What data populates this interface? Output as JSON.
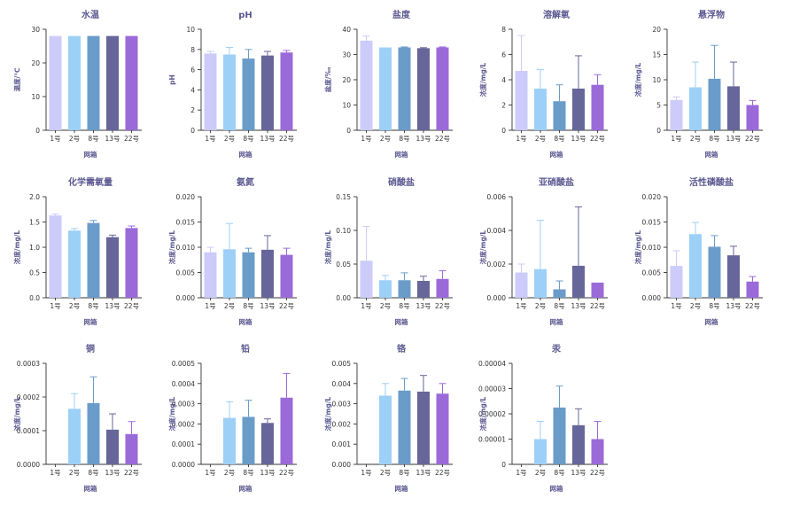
{
  "colors": [
    "#cccbfa",
    "#9dd0f7",
    "#6a9cc9",
    "#66669a",
    "#9b6ad9"
  ],
  "chart_data": [
    {
      "type": "bar",
      "title": "水温",
      "ylabel": "温度/℃",
      "xlabel": "网箱",
      "categories": [
        "1号",
        "2号",
        "8号",
        "13号",
        "22号"
      ],
      "ylim": [
        0,
        30
      ],
      "yticks": [
        "0",
        "10",
        "20",
        "30"
      ],
      "values": [
        28,
        28,
        28,
        28,
        28
      ],
      "errors": [
        0,
        0,
        0,
        0,
        0
      ]
    },
    {
      "type": "bar",
      "title": "pH",
      "ylabel": "pH",
      "xlabel": "网箱",
      "categories": [
        "1号",
        "2号",
        "8号",
        "13号",
        "22号"
      ],
      "ylim": [
        0,
        10
      ],
      "yticks": [
        "0",
        "2",
        "4",
        "6",
        "8",
        "10"
      ],
      "values": [
        7.6,
        7.5,
        7.1,
        7.4,
        7.7
      ],
      "errors": [
        0.2,
        0.7,
        0.9,
        0.4,
        0.2
      ]
    },
    {
      "type": "bar",
      "title": "盐度",
      "ylabel": "盐度/‰",
      "xlabel": "网箱",
      "categories": [
        "1号",
        "2号",
        "8号",
        "13号",
        "22号"
      ],
      "ylim": [
        0,
        40
      ],
      "yticks": [
        "0",
        "10",
        "20",
        "30",
        "40"
      ],
      "values": [
        35.5,
        32.8,
        32.8,
        32.5,
        32.8
      ],
      "errors": [
        1.8,
        0,
        0.2,
        0.2,
        0.2
      ]
    },
    {
      "type": "bar",
      "title": "溶解氧",
      "ylabel": "浓度/mg/L",
      "xlabel": "网箱",
      "categories": [
        "1号",
        "2号",
        "8号",
        "13号",
        "22号"
      ],
      "ylim": [
        0,
        8
      ],
      "yticks": [
        "0",
        "2",
        "4",
        "6",
        "8"
      ],
      "values": [
        4.7,
        3.3,
        2.3,
        3.3,
        3.6
      ],
      "errors": [
        2.8,
        1.5,
        1.3,
        2.6,
        0.8
      ]
    },
    {
      "type": "bar",
      "title": "悬浮物",
      "ylabel": "浓度/mg/L",
      "xlabel": "网箱",
      "categories": [
        "1号",
        "2号",
        "8号",
        "13号",
        "22号"
      ],
      "ylim": [
        0,
        20
      ],
      "yticks": [
        "0",
        "5",
        "10",
        "15",
        "20"
      ],
      "values": [
        6,
        8.5,
        10.2,
        8.7,
        5
      ],
      "errors": [
        0.6,
        5,
        6.6,
        4.8,
        0.9
      ]
    },
    {
      "type": "bar",
      "title": "化学需氧量",
      "ylabel": "浓度/mg/L",
      "xlabel": "网箱",
      "categories": [
        "1号",
        "2号",
        "8号",
        "13号",
        "22号"
      ],
      "ylim": [
        0,
        2.0
      ],
      "yticks": [
        "0.0",
        "0.5",
        "1.0",
        "1.5",
        "2.0"
      ],
      "values": [
        1.63,
        1.33,
        1.48,
        1.2,
        1.38
      ],
      "errors": [
        0.03,
        0.04,
        0.05,
        0.04,
        0.04
      ]
    },
    {
      "type": "bar",
      "title": "氨氮",
      "ylabel": "浓度/mg/L",
      "xlabel": "网箱",
      "categories": [
        "1号",
        "2号",
        "8号",
        "13号",
        "22号"
      ],
      "ylim": [
        0,
        0.02
      ],
      "yticks": [
        "0.000",
        "0.005",
        "0.010",
        "0.015",
        "0.020"
      ],
      "values": [
        0.009,
        0.0096,
        0.009,
        0.0095,
        0.0085
      ],
      "errors": [
        0.001,
        0.0051,
        0.0008,
        0.0028,
        0.0013
      ]
    },
    {
      "type": "bar",
      "title": "硝酸盐",
      "ylabel": "浓度/mg/L",
      "xlabel": "网箱",
      "categories": [
        "1号",
        "2号",
        "8号",
        "13号",
        "22号"
      ],
      "ylim": [
        0,
        0.15
      ],
      "yticks": [
        "0.00",
        "0.05",
        "0.10",
        "0.15"
      ],
      "values": [
        0.055,
        0.026,
        0.026,
        0.025,
        0.028
      ],
      "errors": [
        0.051,
        0.007,
        0.011,
        0.007,
        0.012
      ]
    },
    {
      "type": "bar",
      "title": "亚硝酸盐",
      "ylabel": "浓度/mg/L",
      "xlabel": "网箱",
      "categories": [
        "1号",
        "2号",
        "8号",
        "13号",
        "22号"
      ],
      "ylim": [
        0,
        0.006
      ],
      "yticks": [
        "0.000",
        "0.002",
        "0.004",
        "0.006"
      ],
      "values": [
        0.0015,
        0.0017,
        0.0005,
        0.0019,
        0.0009
      ],
      "errors": [
        0.0005,
        0.0029,
        0.0005,
        0.0035,
        0
      ]
    },
    {
      "type": "bar",
      "title": "活性磷酸盐",
      "ylabel": "浓度/mg/L",
      "xlabel": "网箱",
      "categories": [
        "1号",
        "2号",
        "8号",
        "13号",
        "22号"
      ],
      "ylim": [
        0,
        0.02
      ],
      "yticks": [
        "0.000",
        "0.005",
        "0.010",
        "0.015",
        "0.020"
      ],
      "values": [
        0.0063,
        0.0126,
        0.0101,
        0.0084,
        0.0032
      ],
      "errors": [
        0.003,
        0.0023,
        0.0022,
        0.0018,
        0.001
      ]
    },
    {
      "type": "bar",
      "title": "铜",
      "ylabel": "浓度/mg/L",
      "xlabel": "网箱",
      "categories": [
        "1号",
        "2号",
        "8号",
        "13号",
        "22号"
      ],
      "ylim": [
        0,
        0.0003
      ],
      "yticks": [
        "0.0000",
        "0.0001",
        "0.0002",
        "0.0003"
      ],
      "values": [
        0,
        0.000165,
        0.000182,
        0.000103,
        9e-05
      ],
      "errors": [
        0,
        4.5e-05,
        7.8e-05,
        4.7e-05,
        3.7e-05
      ]
    },
    {
      "type": "bar",
      "title": "铅",
      "ylabel": "浓度/mg/L",
      "xlabel": "网箱",
      "categories": [
        "1号",
        "2号",
        "8号",
        "13号",
        "22号"
      ],
      "ylim": [
        0,
        0.0005
      ],
      "yticks": [
        "0.0000",
        "0.0001",
        "0.0002",
        "0.0003",
        "0.0004",
        "0.0005"
      ],
      "values": [
        0,
        0.00023,
        0.000235,
        0.000205,
        0.00033
      ],
      "errors": [
        0,
        8e-05,
        8.2e-05,
        2e-05,
        0.00012
      ]
    },
    {
      "type": "bar",
      "title": "铬",
      "ylabel": "浓度/mg/L",
      "xlabel": "网箱",
      "categories": [
        "1号",
        "2号",
        "8号",
        "13号",
        "22号"
      ],
      "ylim": [
        0,
        0.005
      ],
      "yticks": [
        "0.000",
        "0.001",
        "0.002",
        "0.003",
        "0.004",
        "0.005"
      ],
      "values": [
        0,
        0.0034,
        0.00365,
        0.0036,
        0.0035
      ],
      "errors": [
        0,
        0.0006,
        0.0006,
        0.0008,
        0.0005
      ]
    },
    {
      "type": "bar",
      "title": "汞",
      "ylabel": "浓度/mg/L",
      "xlabel": "网箱",
      "categories": [
        "1号",
        "2号",
        "8号",
        "13号",
        "22号"
      ],
      "ylim": [
        0,
        4e-05
      ],
      "yticks": [
        "0",
        "0.00001",
        "0.00002",
        "0.00003",
        "0.00004"
      ],
      "values": [
        0,
        1e-05,
        2.25e-05,
        1.55e-05,
        1e-05
      ],
      "errors": [
        0,
        7e-06,
        8.5e-06,
        6.5e-06,
        7e-06
      ]
    }
  ]
}
